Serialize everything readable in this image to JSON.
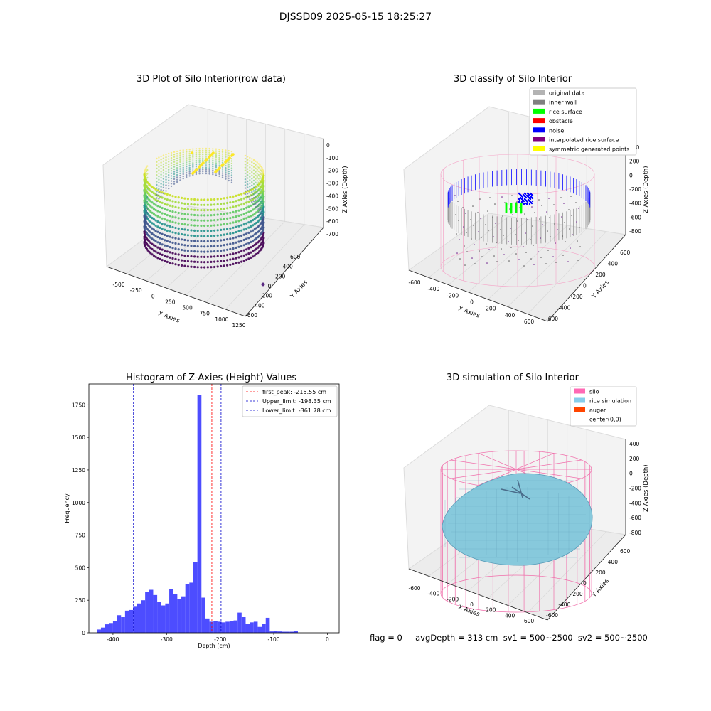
{
  "figure": {
    "suptitle": "DJSSD09 2025-05-15 18:25:27",
    "footer": "flag = 0     avgDepth = 313 cm  sv1 = 500~2500  sv2 = 500~2500"
  },
  "chart_data": [
    {
      "type": "scatter3d",
      "title": "3D Plot of Silo Interior(row data)",
      "xlabel": "X Axies",
      "ylabel": "Y Axies",
      "zlabel": "Z Axies (Depth)",
      "xticks": [
        "-500",
        "-250",
        "0",
        "250",
        "500",
        "750",
        "1000",
        "1250"
      ],
      "yticks": [
        "-600",
        "-400",
        "-200",
        "0",
        "200",
        "400",
        "600"
      ],
      "zticks": [
        "0",
        "-100",
        "-200",
        "-300",
        "-400",
        "-500",
        "-600",
        "-700"
      ],
      "colormap": "viridis"
    },
    {
      "type": "scatter3d",
      "title": "3D classify of Silo Interior",
      "xlabel": "X Axies",
      "ylabel": "Y Axies",
      "zlabel": "Z Axies (Depth)",
      "xticks": [
        "-600",
        "-400",
        "-200",
        "0",
        "200",
        "400",
        "600"
      ],
      "yticks": [
        "-600",
        "-400",
        "-200",
        "0",
        "200",
        "400",
        "600"
      ],
      "zticks": [
        "400",
        "200",
        "0",
        "-200",
        "-400",
        "-600",
        "-800"
      ],
      "legend": [
        {
          "label": "original data",
          "color": "#b3b3b3"
        },
        {
          "label": "inner wall",
          "color": "#808080"
        },
        {
          "label": "rice surface",
          "color": "#00ff00"
        },
        {
          "label": "obstacle",
          "color": "#ff0000"
        },
        {
          "label": "noise",
          "color": "#0000ff"
        },
        {
          "label": "interpolated rice surface",
          "color": "#800080"
        },
        {
          "label": "symmetric generated points",
          "color": "#ffff00"
        }
      ]
    },
    {
      "type": "bar",
      "title": "Histogram of Z-Axies (Height) Values",
      "xlabel": "Depth (cm)",
      "ylabel": "Frequency",
      "xlim": [
        -445,
        22
      ],
      "ylim": [
        0,
        1910
      ],
      "xticks": [
        -400,
        -300,
        -200,
        -100,
        0
      ],
      "yticks": [
        0,
        250,
        500,
        750,
        1000,
        1250,
        1500,
        1750
      ],
      "bin_start": -430,
      "bin_width": 7.5,
      "values": [
        25,
        40,
        65,
        75,
        90,
        135,
        120,
        170,
        175,
        200,
        225,
        250,
        315,
        330,
        290,
        235,
        210,
        225,
        335,
        300,
        260,
        280,
        375,
        385,
        545,
        1825,
        270,
        110,
        85,
        90,
        85,
        80,
        85,
        90,
        95,
        155,
        120,
        70,
        80,
        85,
        45,
        70,
        115,
        10,
        15,
        10,
        8,
        8,
        8,
        15
      ],
      "bar_color": "#4d4dff",
      "vlines": [
        {
          "x": -215.55,
          "color": "#ff0000",
          "label": "first_peak: -215.55 cm"
        },
        {
          "x": -198.35,
          "color": "#0000cc",
          "label": "Upper_limit: -198.35 cm"
        },
        {
          "x": -361.78,
          "color": "#0000cc",
          "label": "Lower_limit: -361.78 cm"
        }
      ]
    },
    {
      "type": "surface3d",
      "title": "3D simulation of Silo Interior",
      "xlabel": "X Axies",
      "ylabel": "Y Axies",
      "zlabel": "Z Axies (Depth)",
      "xticks": [
        "-600",
        "-400",
        "-200",
        "0",
        "200",
        "400",
        "600"
      ],
      "yticks": [
        "-600",
        "-400",
        "-200",
        "0",
        "200",
        "400",
        "600"
      ],
      "zticks": [
        "400",
        "200",
        "0",
        "-200",
        "-400",
        "-600",
        "-800"
      ],
      "legend": [
        {
          "label": "silo",
          "color": "#ff69b4"
        },
        {
          "label": "rice simulation",
          "color": "#87ceeb"
        },
        {
          "label": "auger",
          "color": "#ff4500"
        },
        {
          "label": "center(0,0)",
          "color": ""
        }
      ]
    }
  ]
}
